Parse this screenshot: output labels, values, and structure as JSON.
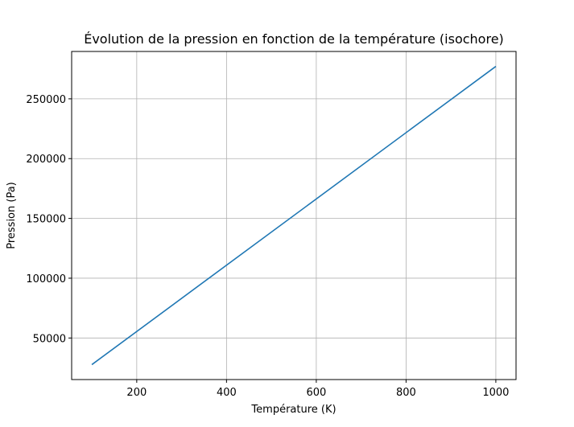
{
  "chart_data": {
    "type": "line",
    "title": "Évolution de la pression en fonction de la température (isochore)",
    "x_label": "Température (K)",
    "y_label": "Pression (Pa)",
    "x": [
      100,
      1000
    ],
    "series": [
      {
        "color": "#1f77b4",
        "values": [
          27713,
          277133
        ]
      }
    ],
    "xlim": [
      55,
      1045
    ],
    "ylim": [
      15242,
      289604
    ],
    "xticks": [
      200,
      400,
      600,
      800,
      1000
    ],
    "yticks": [
      50000,
      100000,
      150000,
      200000,
      250000
    ],
    "grid": true
  }
}
